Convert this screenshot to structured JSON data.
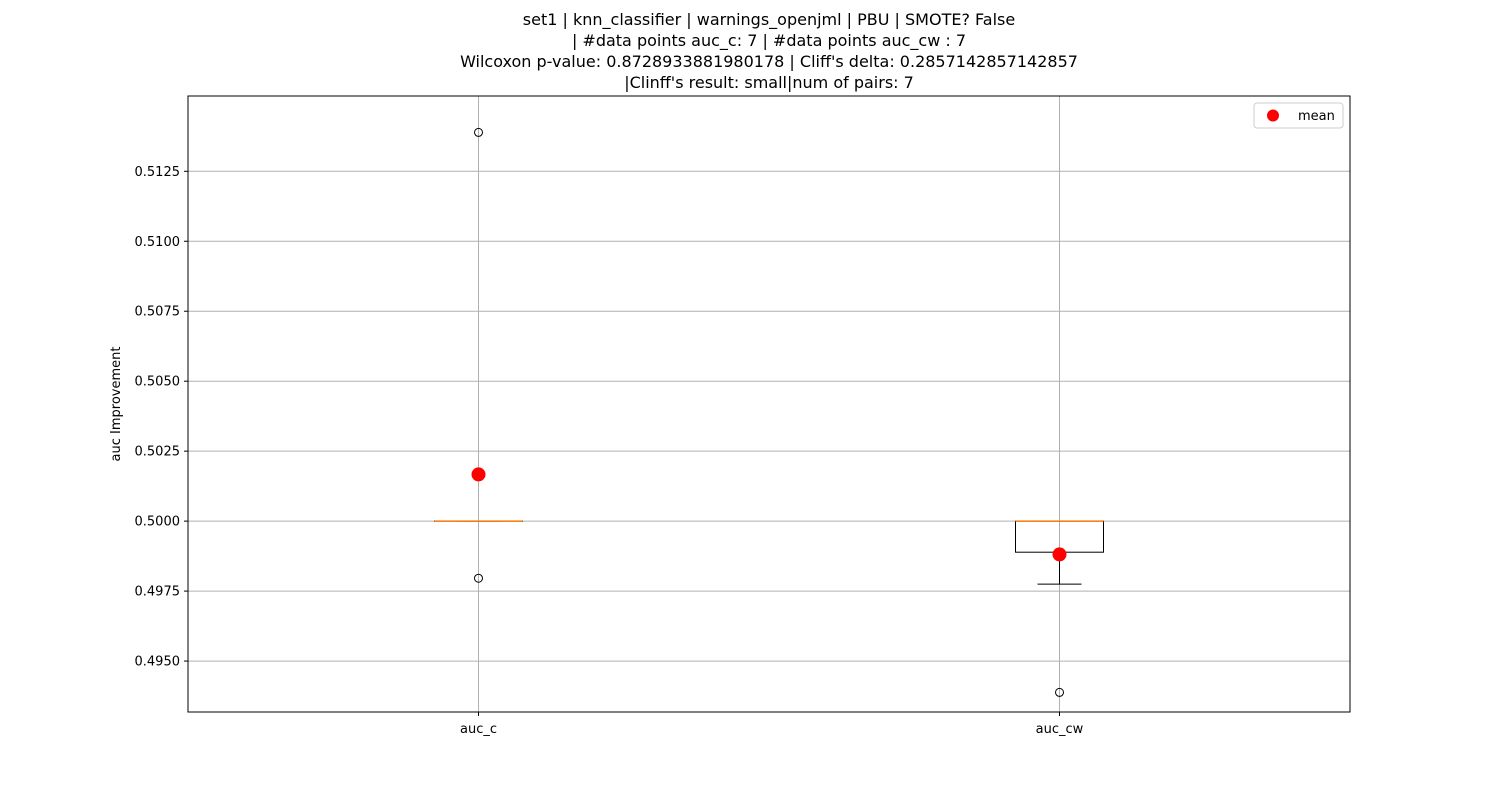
{
  "chart_data": {
    "type": "box",
    "title_lines": [
      "set1 | knn_classifier | warnings_openjml | PBU | SMOTE? False",
      "| #data points auc_c: 7 | #data points auc_cw : 7",
      "Wilcoxon p-value: 0.8728933881980178 | Cliff's delta: 0.2857142857142857",
      "|Clinff's result: small|num of pairs: 7"
    ],
    "ylabel": "auc Improvement",
    "ylim": [
      0.49318,
      0.51519
    ],
    "yticks": [
      0.495,
      0.4975,
      0.5,
      0.5025,
      0.505,
      0.5075,
      0.51,
      0.5125
    ],
    "ytick_labels": [
      "0.4950",
      "0.4975",
      "0.5000",
      "0.5025",
      "0.5050",
      "0.5075",
      "0.5100",
      "0.5125"
    ],
    "grid": true,
    "legend": {
      "position": "top-right",
      "entries": [
        {
          "label": "mean",
          "color": "#ff0000",
          "marker": "circle"
        }
      ]
    },
    "median_color": "#ff7f0e",
    "mean_color": "#ff0000",
    "categories": [
      "auc_c",
      "auc_cw"
    ],
    "boxes": [
      {
        "label": "auc_c",
        "whisker_low": 0.5,
        "q1": 0.5,
        "median": 0.5,
        "q3": 0.5,
        "whisker_high": 0.5,
        "mean": 0.50167,
        "outliers": [
          0.51389,
          0.49796
        ]
      },
      {
        "label": "auc_cw",
        "whisker_low": 0.49775,
        "q1": 0.49889,
        "median": 0.5,
        "q3": 0.5,
        "whisker_high": 0.5,
        "mean": 0.49881,
        "outliers": [
          0.49388
        ]
      }
    ]
  }
}
